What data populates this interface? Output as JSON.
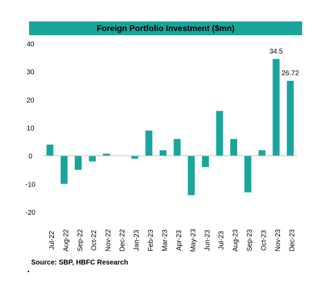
{
  "title": "Foreign Portfolio Investment ($mn)",
  "source": "Source: SBP, HBFC Research",
  "colors": {
    "bar": "#1aa59c",
    "title_bg": "#1aa59c"
  },
  "chart_data": {
    "type": "bar",
    "title": "Foreign Portfolio Investment ($mn)",
    "xlabel": "",
    "ylabel": "",
    "ylim": [
      -20,
      40
    ],
    "yticks": [
      40,
      30,
      20,
      10,
      0,
      -10,
      -20
    ],
    "grid": false,
    "legend": "none",
    "categories": [
      "Jul-22",
      "Aug-22",
      "Sep-22",
      "Oct-22",
      "Nov-22",
      "Dec-22",
      "Jan-23",
      "Feb-23",
      "Mar-23",
      "Apr-23",
      "May-23",
      "Jun-23",
      "Jul-23",
      "Aug-23",
      "Sep-23",
      "Oct-23",
      "Nov-23",
      "Dec-23"
    ],
    "values": [
      4,
      -10,
      -5,
      -2,
      0.8,
      0,
      -1,
      9,
      2,
      6,
      -14,
      -4,
      16,
      6,
      -13,
      2,
      34.5,
      26.72
    ],
    "data_labels": {
      "16": "34.5",
      "17": "26.72"
    }
  }
}
